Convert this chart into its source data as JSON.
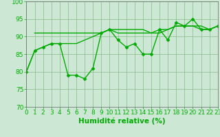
{
  "xlabel": "Humidité relative (%)",
  "bg_color": "#cce8d4",
  "grid_color": "#88bb88",
  "line_color": "#00aa00",
  "ylim": [
    70,
    100
  ],
  "xlim": [
    0,
    23
  ],
  "yticks": [
    70,
    75,
    80,
    85,
    90,
    95,
    100
  ],
  "xticks": [
    0,
    1,
    2,
    3,
    4,
    5,
    6,
    7,
    8,
    9,
    10,
    11,
    12,
    13,
    14,
    15,
    16,
    17,
    18,
    19,
    20,
    21,
    22,
    23
  ],
  "series1_x": [
    0,
    1,
    2,
    3,
    4,
    5,
    6,
    7,
    8,
    9,
    10,
    11,
    12,
    13,
    14,
    15,
    16,
    17,
    18,
    19,
    20,
    21,
    22,
    23
  ],
  "series1_y": [
    80,
    86,
    87,
    88,
    88,
    79,
    79,
    78,
    81,
    91,
    92,
    89,
    87,
    88,
    85,
    85,
    92,
    89,
    94,
    93,
    95,
    92,
    92,
    93
  ],
  "series2_x": [
    0,
    1,
    2,
    3,
    4,
    5,
    6,
    7,
    8,
    9,
    10,
    11,
    12,
    13,
    14,
    15,
    16,
    17,
    18,
    19,
    20,
    21,
    22,
    23
  ],
  "series2_y": [
    80,
    86,
    87,
    88,
    88,
    88,
    88,
    89,
    90,
    91,
    92,
    91,
    91,
    91,
    91,
    91,
    92,
    92,
    93,
    93,
    93,
    92,
    92,
    93
  ],
  "series3_x": [
    1,
    2,
    3,
    4,
    5,
    6,
    7,
    8,
    9,
    10,
    11,
    12,
    13,
    14,
    15,
    16,
    17,
    18,
    19,
    20,
    21,
    22,
    23
  ],
  "series3_y": [
    91,
    91,
    91,
    91,
    91,
    91,
    91,
    91,
    91,
    92,
    92,
    92,
    92,
    92,
    91,
    91,
    92,
    93,
    93,
    93,
    93,
    92,
    93
  ],
  "marker_size": 2.5,
  "linewidth": 1.0,
  "tick_fontsize": 6.5,
  "xlabel_fontsize": 7.5
}
